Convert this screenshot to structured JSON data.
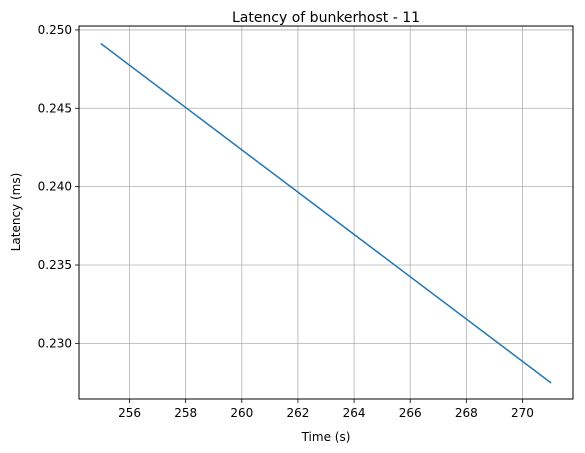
{
  "chart_data": {
    "type": "line",
    "title": "Latency of bunkerhost - 11",
    "xlabel": "Time (s)",
    "ylabel": "Latency (ms)",
    "xlim": [
      254.2,
      271.8
    ],
    "ylim": [
      0.22645,
      0.25025
    ],
    "xticks": [
      256,
      258,
      260,
      262,
      264,
      266,
      268,
      270
    ],
    "yticks": [
      0.23,
      0.235,
      0.24,
      0.245,
      0.25
    ],
    "ytick_labels": [
      "0.230",
      "0.235",
      "0.240",
      "0.245",
      "0.250"
    ],
    "grid": true,
    "series": [
      {
        "color": "#1f77b4",
        "x": [
          255,
          271
        ],
        "y": [
          0.2491,
          0.2275
        ]
      }
    ]
  }
}
